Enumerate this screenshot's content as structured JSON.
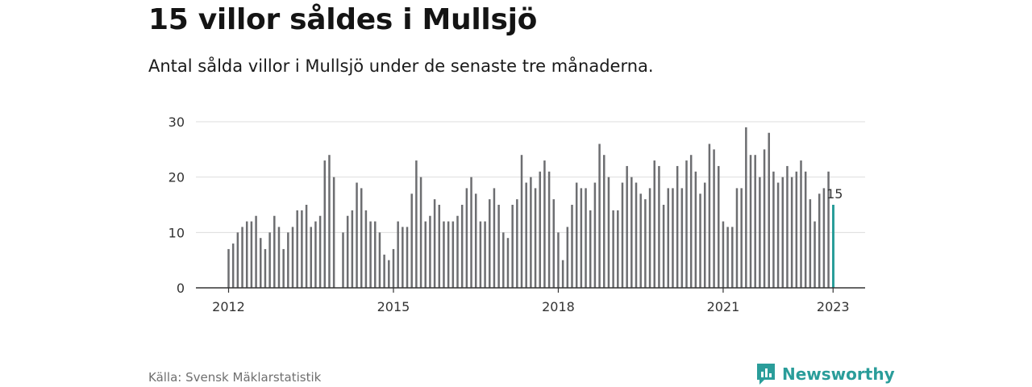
{
  "header": {
    "title": "15 villor såldes i Mullsjö",
    "subtitle": "Antal sålda villor i Mullsjö under de senaste tre månaderna."
  },
  "footer": {
    "source": "Källa: Svensk Mäklarstatistik",
    "brand": "Newsworthy"
  },
  "colors": {
    "bar": "#6d6e71",
    "highlight": "#2a9d9a",
    "grid": "#dddddd",
    "axis": "#333333"
  },
  "chart_data": {
    "type": "bar",
    "title": "",
    "xlabel": "",
    "ylabel": "",
    "ylim": [
      0,
      30
    ],
    "yticks": [
      0,
      10,
      20,
      30
    ],
    "xticks": [
      {
        "label": "2012",
        "index": 0
      },
      {
        "label": "2015",
        "index": 36
      },
      {
        "label": "2018",
        "index": 72
      },
      {
        "label": "2021",
        "index": 108
      },
      {
        "label": "2023",
        "index": 132
      }
    ],
    "start_month": "2012-01",
    "end_month": "2023-01",
    "grid": true,
    "highlight_label": "15",
    "values": [
      7,
      8,
      10,
      11,
      12,
      12,
      13,
      9,
      7,
      10,
      13,
      11,
      7,
      10,
      11,
      14,
      14,
      15,
      11,
      12,
      13,
      23,
      24,
      20,
      null,
      10,
      13,
      14,
      19,
      18,
      14,
      12,
      12,
      10,
      6,
      5,
      7,
      12,
      11,
      11,
      17,
      23,
      20,
      12,
      13,
      16,
      15,
      12,
      12,
      12,
      13,
      15,
      18,
      20,
      17,
      12,
      12,
      16,
      18,
      15,
      10,
      9,
      15,
      16,
      24,
      19,
      20,
      18,
      21,
      23,
      21,
      16,
      10,
      5,
      11,
      15,
      19,
      18,
      18,
      14,
      19,
      26,
      24,
      20,
      14,
      14,
      19,
      22,
      20,
      19,
      17,
      16,
      18,
      23,
      22,
      15,
      18,
      18,
      22,
      18,
      23,
      24,
      21,
      17,
      19,
      26,
      25,
      22,
      12,
      11,
      11,
      18,
      18,
      29,
      24,
      24,
      20,
      25,
      28,
      21,
      19,
      20,
      22,
      20,
      21,
      23,
      21,
      16,
      12,
      17,
      18,
      21,
      15
    ]
  }
}
